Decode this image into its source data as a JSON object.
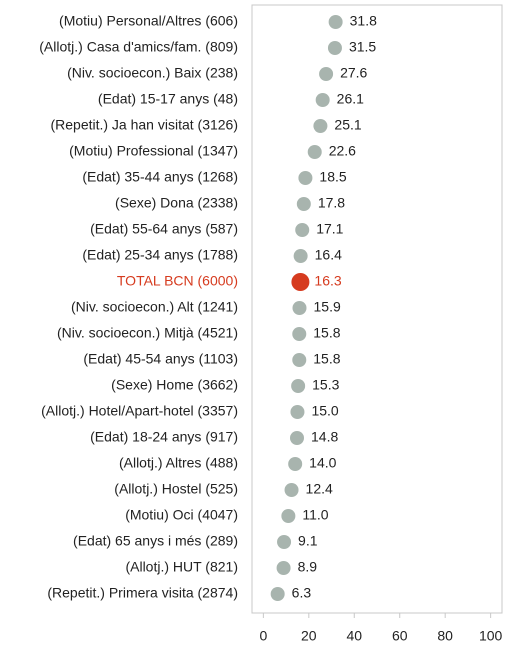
{
  "chart_data": {
    "type": "dot",
    "categories": [
      "(Motiu) Personal/Altres (606)",
      "(Allotj.) Casa d'amics/fam. (809)",
      "(Niv. socioecon.) Baix (238)",
      "(Edat) 15-17 anys (48)",
      "(Repetit.) Ja han visitat (3126)",
      "(Motiu) Professional (1347)",
      "(Edat) 35-44 anys (1268)",
      "(Sexe) Dona (2338)",
      "(Edat) 55-64 anys (587)",
      "(Edat) 25-34 anys (1788)",
      "TOTAL BCN (6000)",
      "(Niv. socioecon.) Alt (1241)",
      "(Niv. socioecon.) Mitjà (4521)",
      "(Edat) 45-54 anys (1103)",
      "(Sexe) Home (3662)",
      "(Allotj.) Hotel/Apart-hotel (3357)",
      "(Edat) 18-24 anys (917)",
      "(Allotj.) Altres (488)",
      "(Allotj.) Hostel (525)",
      "(Motiu) Oci (4047)",
      "(Edat) 65 anys i més (289)",
      "(Allotj.) HUT (821)",
      "(Repetit.) Primera visita (2874)"
    ],
    "values": [
      31.8,
      31.5,
      27.6,
      26.1,
      25.1,
      22.6,
      18.5,
      17.8,
      17.1,
      16.4,
      16.3,
      15.9,
      15.8,
      15.8,
      15.3,
      15.0,
      14.8,
      14.0,
      12.4,
      11.0,
      9.1,
      8.9,
      6.3
    ],
    "value_labels": [
      "31.8",
      "31.5",
      "27.6",
      "26.1",
      "25.1",
      "22.6",
      "18.5",
      "17.8",
      "17.1",
      "16.4",
      "16.3",
      "15.9",
      "15.8",
      "15.8",
      "15.3",
      "15.0",
      "14.8",
      "14.0",
      "12.4",
      "11.0",
      "9.1",
      "8.9",
      "6.3"
    ],
    "colors": [
      "#a8b4ae",
      "#a8b4ae",
      "#a8b4ae",
      "#a8b4ae",
      "#a8b4ae",
      "#a8b4ae",
      "#a8b4ae",
      "#a8b4ae",
      "#a8b4ae",
      "#a8b4ae",
      "#d63b1f",
      "#a8b4ae",
      "#a8b4ae",
      "#a8b4ae",
      "#a8b4ae",
      "#a8b4ae",
      "#a8b4ae",
      "#a8b4ae",
      "#a8b4ae",
      "#a8b4ae",
      "#a8b4ae",
      "#a8b4ae",
      "#a8b4ae"
    ],
    "xlim": [
      -5,
      105
    ],
    "xticks": [
      0,
      20,
      40,
      60,
      80,
      100
    ]
  }
}
